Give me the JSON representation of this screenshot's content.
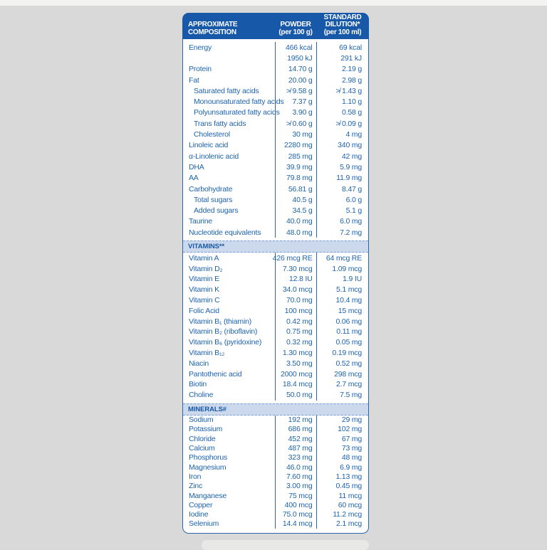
{
  "page": {
    "background": "#d9d9d9",
    "top_strip_color": "#f3f3f1",
    "bottom_shape_color": "#e8e8e6"
  },
  "table": {
    "colors": {
      "header_bg": "#1759a8",
      "border": "#2a65ae",
      "text": "#1e63ae",
      "section_band_bg": "#ccd9ec",
      "dashed_line": "#7aa0d0",
      "header_text": "#ffffff"
    },
    "header": {
      "col1": [
        "APPROXIMATE",
        "COMPOSITION"
      ],
      "col2": [
        "POWDER",
        "(per 100 g)"
      ],
      "col3": [
        "STANDARD",
        "DILUTION*",
        "(per 100 ml)"
      ]
    },
    "sections": [
      {
        "id": "main",
        "title": "",
        "rows": [
          {
            "label": "Energy",
            "powder": "466 kcal",
            "dilution": "69 kcal"
          },
          {
            "label": "",
            "powder": "1950 kJ",
            "dilution": "291 kJ"
          },
          {
            "label": "Protein",
            "powder": "14.70 g",
            "dilution": "2.19 g"
          },
          {
            "label": "Fat",
            "powder": "20.00 g",
            "dilution": "2.98 g"
          },
          {
            "label": "Saturated fatty acids",
            "indent": true,
            "powder": "≯ 9.58 g",
            "dilution": "≯ 1.43 g"
          },
          {
            "label": "Monounsaturated fatty acids",
            "indent": true,
            "powder": "7.37 g",
            "dilution": "1.10 g"
          },
          {
            "label": "Polyunsaturated fatty acids",
            "indent": true,
            "powder": "3.90 g",
            "dilution": "0.58 g"
          },
          {
            "label": "Trans fatty acids",
            "indent": true,
            "powder": "≯ 0.60 g",
            "dilution": "≯ 0.09 g"
          },
          {
            "label": "Cholesterol",
            "indent": true,
            "powder": "30 mg",
            "dilution": "4 mg"
          },
          {
            "label": "Linoleic acid",
            "powder": "2280 mg",
            "dilution": "340 mg"
          },
          {
            "label": "α-Linolenic acid",
            "powder": "285 mg",
            "dilution": "42 mg"
          },
          {
            "label": "DHA",
            "powder": "39.9 mg",
            "dilution": "5.9 mg"
          },
          {
            "label": "AA",
            "powder": "79.8 mg",
            "dilution": "11.9 mg"
          },
          {
            "label": "Carbohydrate",
            "powder": "56.81 g",
            "dilution": "8.47 g"
          },
          {
            "label": "Total sugars",
            "indent": true,
            "powder": "40.5 g",
            "dilution": "6.0 g"
          },
          {
            "label": "Added sugars",
            "indent": true,
            "powder": "34.5 g",
            "dilution": "5.1 g"
          },
          {
            "label": "Taurine",
            "powder": "40.0 mg",
            "dilution": "6.0 mg"
          },
          {
            "label": "Nucleotide equivalents",
            "powder": "48.0 mg",
            "dilution": "7.2 mg"
          }
        ]
      },
      {
        "id": "vitamins",
        "title": "VITAMINS**",
        "rows": [
          {
            "label": "Vitamin A",
            "powder": "426 mcg RE",
            "dilution": "64 mcg RE"
          },
          {
            "label": "Vitamin D₂",
            "powder": "7.30 mcg",
            "dilution": "1.09 mcg"
          },
          {
            "label": "Vitamin E",
            "powder": "12.8 IU",
            "dilution": "1.9 IU"
          },
          {
            "label": "Vitamin K",
            "powder": "34.0 mcg",
            "dilution": "5.1 mcg"
          },
          {
            "label": "Vitamin C",
            "powder": "70.0 mg",
            "dilution": "10.4 mg"
          },
          {
            "label": "Folic Acid",
            "powder": "100 mcg",
            "dilution": "15 mcg"
          },
          {
            "label": "Vitamin B₁ (thiamin)",
            "powder": "0.42 mg",
            "dilution": "0.06 mg"
          },
          {
            "label": "Vitamin B₂ (riboflavin)",
            "powder": "0.75 mg",
            "dilution": "0.11 mg"
          },
          {
            "label": "Vitamin B₆ (pyridoxine)",
            "powder": "0.32 mg",
            "dilution": "0.05 mg"
          },
          {
            "label": "Vitamin B₁₂",
            "powder": "1.30 mcg",
            "dilution": "0.19 mcg"
          },
          {
            "label": "Niacin",
            "powder": "3.50 mg",
            "dilution": "0.52 mg"
          },
          {
            "label": "Pantothenic acid",
            "powder": "2000 mcg",
            "dilution": "298 mcg"
          },
          {
            "label": "Biotin",
            "powder": "18.4 mcg",
            "dilution": "2.7 mcg"
          },
          {
            "label": "Choline",
            "powder": "50.0 mg",
            "dilution": "7.5 mg"
          }
        ]
      },
      {
        "id": "minerals",
        "title": "MINERALS#",
        "rows": [
          {
            "label": "Sodium",
            "powder": "192 mg",
            "dilution": "29 mg"
          },
          {
            "label": "Potassium",
            "powder": "686 mg",
            "dilution": "102 mg"
          },
          {
            "label": "Chloride",
            "powder": "452 mg",
            "dilution": "67 mg"
          },
          {
            "label": "Calcium",
            "powder": "487 mg",
            "dilution": "73 mg"
          },
          {
            "label": "Phosphorus",
            "powder": "323 mg",
            "dilution": "48 mg"
          },
          {
            "label": "Magnesium",
            "powder": "46.0 mg",
            "dilution": "6.9 mg"
          },
          {
            "label": "Iron",
            "powder": "7.60 mg",
            "dilution": "1.13 mg"
          },
          {
            "label": "Zinc",
            "powder": "3.00 mg",
            "dilution": "0.45 mg"
          },
          {
            "label": "Manganese",
            "powder": "75 mcg",
            "dilution": "11 mcg"
          },
          {
            "label": "Copper",
            "powder": "400 mcg",
            "dilution": "60 mcg"
          },
          {
            "label": "Iodine",
            "powder": "75.0 mcg",
            "dilution": "11.2 mcg"
          },
          {
            "label": "Selenium",
            "powder": "14.4 mcg",
            "dilution": "2.1 mcg"
          }
        ]
      }
    ]
  }
}
